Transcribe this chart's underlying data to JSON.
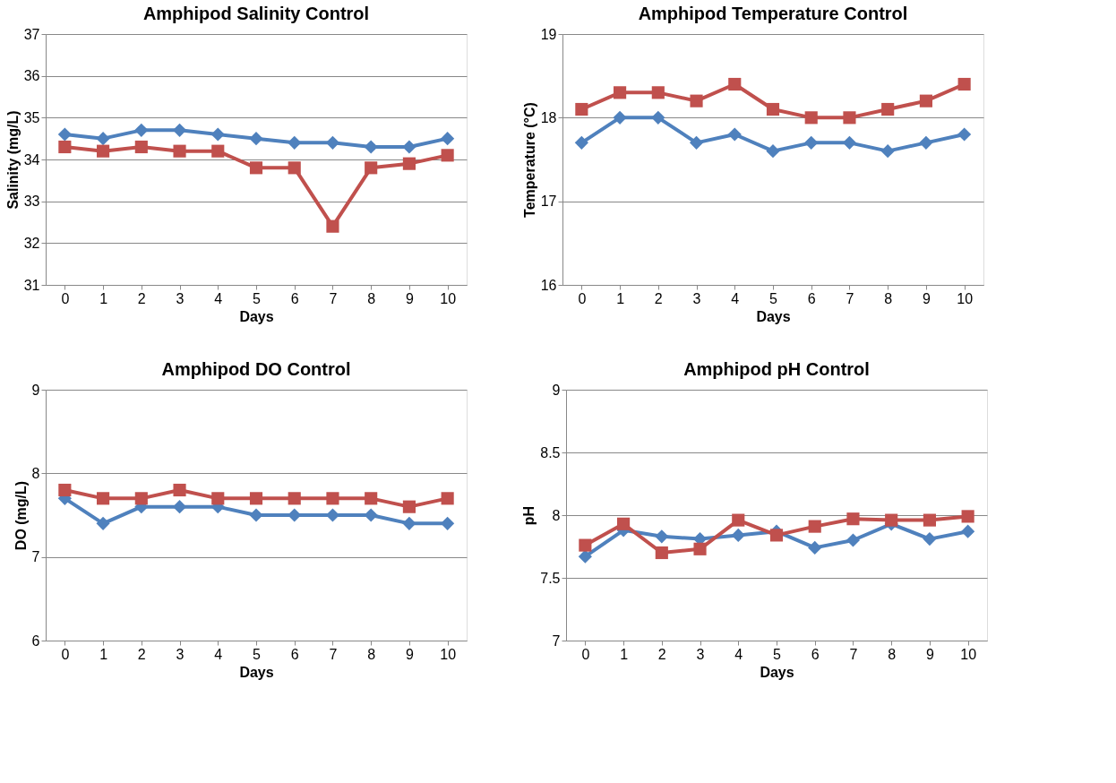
{
  "chart_data": [
    {
      "type": "line",
      "title": "Amphipod Salinity  Control",
      "xlabel": "Days",
      "ylabel": "Salinity (mg/L)",
      "categories": [
        "0",
        "1",
        "2",
        "3",
        "4",
        "5",
        "6",
        "7",
        "8",
        "9",
        "10"
      ],
      "ylim": [
        31,
        37
      ],
      "yticks": [
        31,
        32,
        33,
        34,
        35,
        36,
        37
      ],
      "grid": "y",
      "legend": false,
      "line_style": "solid",
      "series": [
        {
          "color": "#4f81bd",
          "marker": "diamond",
          "values": [
            34.6,
            34.5,
            34.7,
            34.7,
            34.6,
            34.5,
            34.4,
            34.4,
            34.3,
            34.3,
            34.5
          ]
        },
        {
          "color": "#c0504d",
          "marker": "square",
          "values": [
            34.3,
            34.2,
            34.3,
            34.2,
            34.2,
            33.8,
            33.8,
            32.4,
            33.8,
            33.9,
            34.1
          ]
        }
      ]
    },
    {
      "type": "line",
      "title": "Amphipod Temperature Control",
      "xlabel": "Days",
      "ylabel": "Temperature (°C)",
      "categories": [
        "0",
        "1",
        "2",
        "3",
        "4",
        "5",
        "6",
        "7",
        "8",
        "9",
        "10"
      ],
      "ylim": [
        16,
        19
      ],
      "yticks": [
        16,
        17,
        18,
        19
      ],
      "grid": "y",
      "legend": false,
      "line_style": "solid",
      "series": [
        {
          "color": "#4f81bd",
          "marker": "diamond",
          "values": [
            17.7,
            18.0,
            18.0,
            17.7,
            17.8,
            17.6,
            17.7,
            17.7,
            17.6,
            17.7,
            17.8
          ]
        },
        {
          "color": "#c0504d",
          "marker": "square",
          "values": [
            18.1,
            18.3,
            18.3,
            18.2,
            18.4,
            18.1,
            18.0,
            18.0,
            18.1,
            18.2,
            18.4
          ]
        }
      ]
    },
    {
      "type": "line",
      "title": "Amphipod DO Control",
      "xlabel": "Days",
      "ylabel": "DO (mg/L)",
      "categories": [
        "0",
        "1",
        "2",
        "3",
        "4",
        "5",
        "6",
        "7",
        "8",
        "9",
        "10"
      ],
      "ylim": [
        6,
        9
      ],
      "yticks": [
        6,
        7,
        8,
        9
      ],
      "grid": "y",
      "legend": false,
      "line_style": "solid",
      "series": [
        {
          "color": "#4f81bd",
          "marker": "diamond",
          "values": [
            7.7,
            7.4,
            7.6,
            7.6,
            7.6,
            7.5,
            7.5,
            7.5,
            7.5,
            7.4,
            7.4
          ]
        },
        {
          "color": "#c0504d",
          "marker": "square",
          "values": [
            7.8,
            7.7,
            7.7,
            7.8,
            7.7,
            7.7,
            7.7,
            7.7,
            7.7,
            7.6,
            7.7
          ]
        }
      ]
    },
    {
      "type": "line",
      "title": "Amphipod pH Control",
      "xlabel": "Days",
      "ylabel": "pH",
      "categories": [
        "0",
        "1",
        "2",
        "3",
        "4",
        "5",
        "6",
        "7",
        "8",
        "9",
        "10"
      ],
      "ylim": [
        7,
        9
      ],
      "yticks": [
        7,
        7.5,
        8,
        8.5,
        9
      ],
      "grid": "y",
      "legend": false,
      "line_style": "solid",
      "series": [
        {
          "color": "#4f81bd",
          "marker": "diamond",
          "values": [
            7.67,
            7.88,
            7.83,
            7.81,
            7.84,
            7.87,
            7.74,
            7.8,
            7.93,
            7.81,
            7.87
          ]
        },
        {
          "color": "#c0504d",
          "marker": "square",
          "values": [
            7.76,
            7.93,
            7.7,
            7.73,
            7.96,
            7.84,
            7.91,
            7.97,
            7.96,
            7.96,
            7.99
          ]
        }
      ]
    }
  ]
}
